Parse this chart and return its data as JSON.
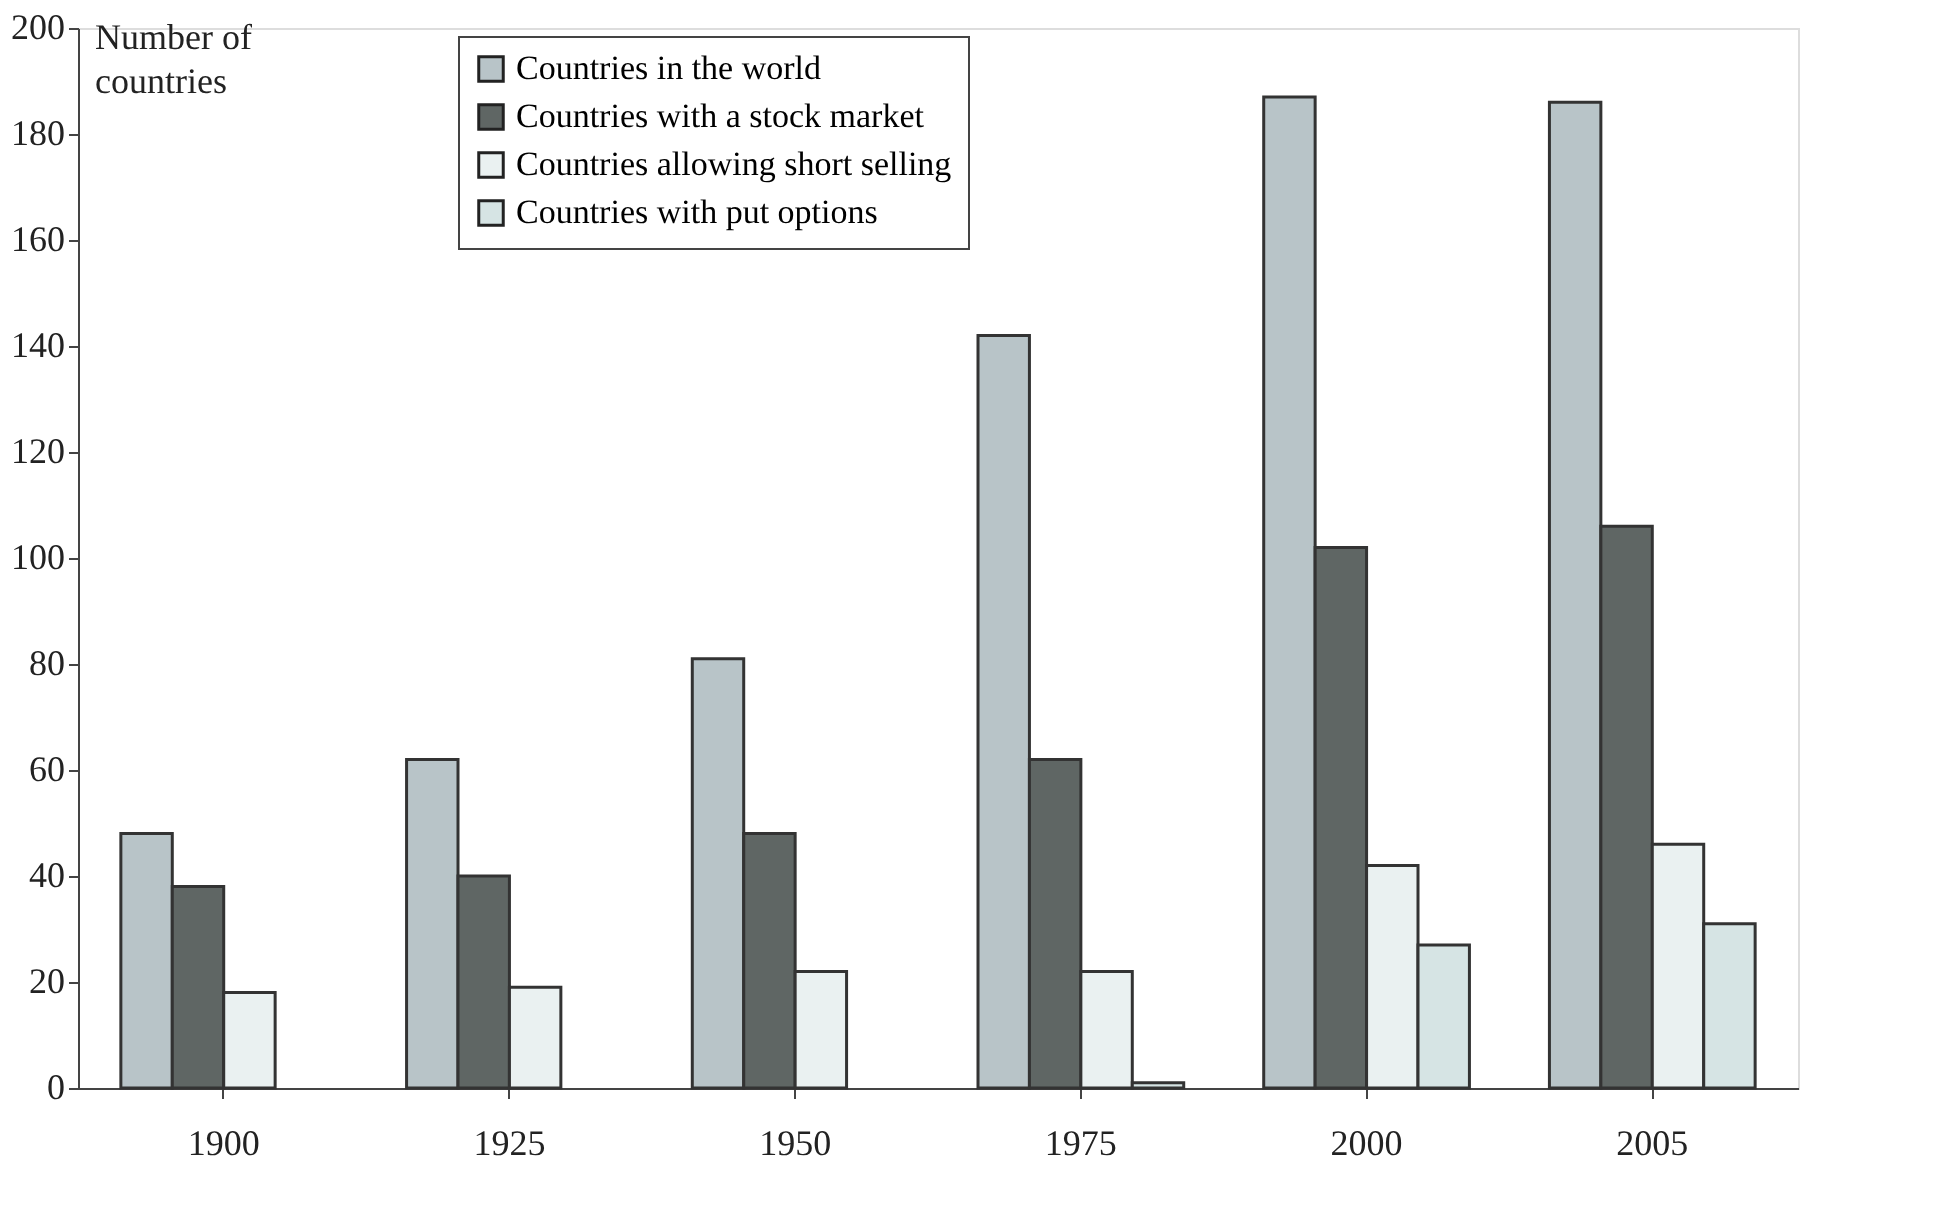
{
  "chart_data": {
    "type": "bar",
    "ylabel": "Number of countries",
    "categories": [
      "1900",
      "1925",
      "1950",
      "1975",
      "2000",
      "2005"
    ],
    "series": [
      {
        "name": "Countries in the world",
        "color": "#b8c4c8",
        "values": [
          48,
          62,
          81,
          142,
          187,
          186
        ]
      },
      {
        "name": "Countries with a stock market",
        "color": "#5f6664",
        "values": [
          38,
          40,
          48,
          62,
          102,
          106
        ]
      },
      {
        "name": "Countries allowing short selling",
        "color": "#eaf1f1",
        "values": [
          18,
          19,
          22,
          22,
          42,
          46
        ]
      },
      {
        "name": "Countries with put options",
        "color": "#d6e4e4",
        "values": [
          0,
          0,
          0,
          1,
          27,
          31
        ]
      }
    ],
    "ylim": [
      0,
      200
    ],
    "yticks": [
      0,
      20,
      40,
      60,
      80,
      100,
      120,
      140,
      160,
      180,
      200
    ],
    "grid": false,
    "legend": "top left"
  }
}
